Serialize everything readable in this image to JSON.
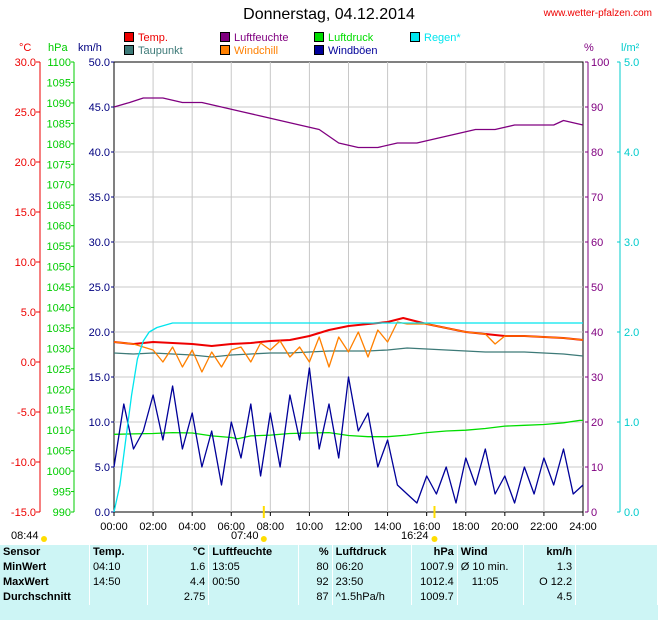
{
  "title": "Donnerstag, 04.12.2014",
  "source_link": "www.wetter-pfalzen.com",
  "sunrise": "08:44",
  "sunset": "16:24",
  "marker_time": "07:40",
  "colors": {
    "temp": "#ee0000",
    "dewpoint": "#3d7a78",
    "humidity": "#800080",
    "windchill": "#ff8000",
    "pressure": "#00dd00",
    "wind": "#000099",
    "rain": "#00e5ee",
    "gust": "#000099",
    "axis_temp": "#ee0000",
    "axis_hpa": "#00cc00",
    "axis_kmh": "#000080",
    "axis_pct": "#800080",
    "axis_rain": "#00cccc",
    "grid": "#c8c8c8",
    "sun": "#ffdd00",
    "stats_bg": "#cdf5f5"
  },
  "legend": [
    {
      "label": "Temp.",
      "color": "#ee0000"
    },
    {
      "label": "Taupunkt",
      "color": "#3d7a78"
    },
    {
      "label": "Luftfeuchte",
      "color": "#800080"
    },
    {
      "label": "Windchill",
      "color": "#ff8000"
    },
    {
      "label": "Luftdruck",
      "color": "#00dd00"
    },
    {
      "label": "Windböen",
      "color": "#000099"
    },
    {
      "label": "Regen*",
      "color": "#00e5ee"
    }
  ],
  "axes": {
    "temp": {
      "unit": "°C",
      "ticks": [
        "30.0",
        "25.0",
        "20.0",
        "15.0",
        "10.0",
        "5.0",
        "0.0",
        "-5.0",
        "-10.0",
        "-15.0"
      ]
    },
    "hpa": {
      "unit": "hPa",
      "ticks": [
        "1100",
        "1095",
        "1090",
        "1085",
        "1080",
        "1075",
        "1070",
        "1065",
        "1060",
        "1055",
        "1050",
        "1045",
        "1040",
        "1035",
        "1030",
        "1025",
        "1020",
        "1015",
        "1010",
        "1005",
        "1000",
        "995",
        "990"
      ]
    },
    "kmh": {
      "unit": "km/h",
      "ticks": [
        "50.0",
        "45.0",
        "40.0",
        "35.0",
        "30.0",
        "25.0",
        "20.0",
        "15.0",
        "10.0",
        "5.0",
        "0.0"
      ]
    },
    "pct": {
      "unit": "%",
      "ticks": [
        "100",
        "90",
        "80",
        "70",
        "60",
        "50",
        "40",
        "30",
        "20",
        "10",
        "0"
      ]
    },
    "rain": {
      "unit": "l/m²",
      "ticks": [
        "5.0",
        "4.0",
        "3.0",
        "2.0",
        "1.0",
        "0.0"
      ]
    },
    "x": {
      "ticks": [
        "00:00",
        "02:00",
        "04:00",
        "06:00",
        "08:00",
        "10:00",
        "12:00",
        "14:00",
        "16:00",
        "18:00",
        "20:00",
        "22:00",
        "24:00"
      ]
    }
  },
  "chart_data": {
    "type": "line",
    "title": "Donnerstag, 04.12.2014",
    "x_range": [
      "00:00",
      "24:00"
    ],
    "y_ranges": {
      "temp_c": [
        -15,
        30
      ],
      "pressure_hpa": [
        990,
        1100
      ],
      "wind_kmh": [
        0,
        50
      ],
      "humidity_pct": [
        0,
        100
      ],
      "rain_mm": [
        0,
        5
      ]
    },
    "grid": true,
    "series": [
      {
        "name": "Temp.",
        "axis": "temp_c",
        "x_hours": [
          0,
          1,
          2,
          3,
          4,
          5,
          6,
          7,
          8,
          9,
          10,
          11,
          12,
          13,
          14,
          14.8,
          16,
          17,
          18,
          19,
          20,
          21,
          22,
          23,
          24
        ],
        "values": [
          2.0,
          1.8,
          2.0,
          1.9,
          1.8,
          1.6,
          1.8,
          1.9,
          2.1,
          2.2,
          2.6,
          3.2,
          3.6,
          3.8,
          4.0,
          4.4,
          3.8,
          3.4,
          3.0,
          2.8,
          2.6,
          2.6,
          2.5,
          2.4,
          2.2
        ]
      },
      {
        "name": "Taupunkt",
        "axis": "temp_c",
        "x_hours": [
          0,
          1,
          2,
          3,
          4,
          5,
          6,
          7,
          8,
          9,
          10,
          11,
          12,
          13,
          14,
          15,
          16,
          17,
          18,
          19,
          20,
          21,
          22,
          23,
          24
        ],
        "values": [
          0.9,
          0.8,
          0.9,
          0.8,
          0.7,
          0.5,
          0.7,
          0.8,
          0.9,
          0.9,
          1.0,
          1.1,
          1.1,
          1.1,
          1.2,
          1.4,
          1.3,
          1.2,
          1.1,
          1.0,
          1.0,
          1.0,
          0.9,
          0.8,
          0.6
        ]
      },
      {
        "name": "Luftfeuchte",
        "axis": "humidity_pct",
        "x_hours": [
          0,
          0.8,
          1.5,
          2.5,
          3.5,
          4.5,
          5.5,
          6.5,
          7.5,
          8.5,
          9.5,
          10.5,
          11.5,
          12.5,
          13.5,
          14.5,
          15.5,
          16.5,
          17.5,
          18.5,
          19.5,
          20.5,
          21.5,
          22.5,
          23,
          24
        ],
        "values": [
          90,
          91,
          92,
          92,
          91,
          91,
          90,
          89,
          88,
          87,
          86,
          85,
          82,
          81,
          81,
          82,
          82,
          83,
          84,
          85,
          85,
          86,
          86,
          86,
          87,
          86
        ]
      },
      {
        "name": "Windchill",
        "axis": "temp_c",
        "x_hours": [
          0,
          1,
          2,
          2.5,
          3,
          3.5,
          4,
          4.5,
          5,
          5.5,
          6,
          6.5,
          7,
          7.5,
          8,
          8.5,
          9,
          9.5,
          10,
          10.5,
          11,
          11.5,
          12,
          12.5,
          13,
          13.5,
          14,
          14.5,
          15,
          16,
          17,
          18,
          19,
          19.5,
          20,
          21,
          22,
          23,
          24
        ],
        "values": [
          2.0,
          1.8,
          1.2,
          0.0,
          1.5,
          -0.5,
          1.2,
          -1.0,
          1.0,
          -0.5,
          1.2,
          1.5,
          0.0,
          1.9,
          1.2,
          2.1,
          0.5,
          1.5,
          0.0,
          2.5,
          -0.5,
          2.5,
          1.0,
          3.0,
          0.5,
          3.2,
          2.0,
          4.0,
          3.8,
          3.8,
          3.4,
          3.0,
          2.8,
          1.8,
          2.6,
          2.6,
          2.5,
          2.4,
          2.2
        ]
      },
      {
        "name": "Luftdruck",
        "axis": "pressure_hpa",
        "x_hours": [
          0,
          1,
          2,
          3,
          4,
          5,
          6,
          6.33,
          7,
          8,
          9,
          10,
          11,
          12,
          13,
          14,
          15,
          16,
          17,
          18,
          19,
          20,
          21,
          22,
          23,
          23.83,
          24
        ],
        "values": [
          1009.0,
          1009.1,
          1009.2,
          1009.4,
          1009.3,
          1008.6,
          1008.2,
          1007.9,
          1008.6,
          1008.8,
          1009.2,
          1009.3,
          1009.4,
          1008.7,
          1008.4,
          1008.4,
          1008.8,
          1009.4,
          1009.8,
          1010.0,
          1010.4,
          1011.0,
          1011.2,
          1011.4,
          1011.8,
          1012.4,
          1012.4
        ]
      },
      {
        "name": "Windböen",
        "axis": "wind_kmh",
        "x_hours": [
          0,
          0.5,
          1,
          1.5,
          2,
          2.5,
          3,
          3.5,
          4,
          4.5,
          5,
          5.5,
          6,
          6.5,
          7,
          7.5,
          8,
          8.5,
          9,
          9.5,
          10,
          10.5,
          11,
          11.5,
          12,
          12.5,
          13,
          13.5,
          14,
          14.5,
          15,
          15.5,
          16,
          16.5,
          17,
          17.5,
          18,
          18.5,
          19,
          19.5,
          20,
          20.5,
          21,
          21.5,
          22,
          22.5,
          23,
          23.5,
          24
        ],
        "values": [
          5,
          12,
          7,
          9,
          13,
          8,
          14,
          7,
          11,
          5,
          9,
          3,
          10,
          6,
          12,
          4,
          11,
          5,
          13,
          8,
          16,
          7,
          12,
          6,
          15,
          9,
          11,
          5,
          8,
          3,
          2,
          1,
          4,
          2,
          5,
          1,
          6,
          3,
          7,
          2,
          4,
          1,
          5,
          2,
          6,
          3,
          7,
          2,
          3
        ]
      },
      {
        "name": "Regen*",
        "axis": "rain_mm",
        "x_hours": [
          0,
          0.3,
          0.6,
          0.9,
          1.2,
          1.5,
          1.8,
          2.2,
          3,
          24
        ],
        "values": [
          0,
          0.3,
          0.8,
          1.3,
          1.7,
          1.9,
          2.0,
          2.05,
          2.1,
          2.1
        ]
      }
    ]
  },
  "stats": {
    "headers": [
      "Sensor",
      "Temp.",
      "°C",
      "Luftfeuchte",
      "%",
      "Luftdruck",
      "hPa",
      "Wind",
      "km/h"
    ],
    "rows": [
      {
        "label": "MinWert",
        "temp_time": "04:10",
        "temp": "1.6",
        "hum_time": "13:05",
        "hum": "80",
        "press_time": "06:20",
        "press": "1007.9",
        "wind_label": "Ø 10 min.",
        "wind": "1.3"
      },
      {
        "label": "MaxWert",
        "temp_time": "14:50",
        "temp": "4.4",
        "hum_time": "00:50",
        "hum": "92",
        "press_time": "23:50",
        "press": "1012.4",
        "wind_label": "11:05",
        "wind": "O 12.2"
      },
      {
        "label": "Durchschnitt",
        "temp_time": "",
        "temp": "2.75",
        "hum_time": "",
        "hum": "87",
        "press_time": "^1.5hPa/h",
        "press": "1009.7",
        "wind_label": "",
        "wind": "4.5"
      }
    ]
  }
}
